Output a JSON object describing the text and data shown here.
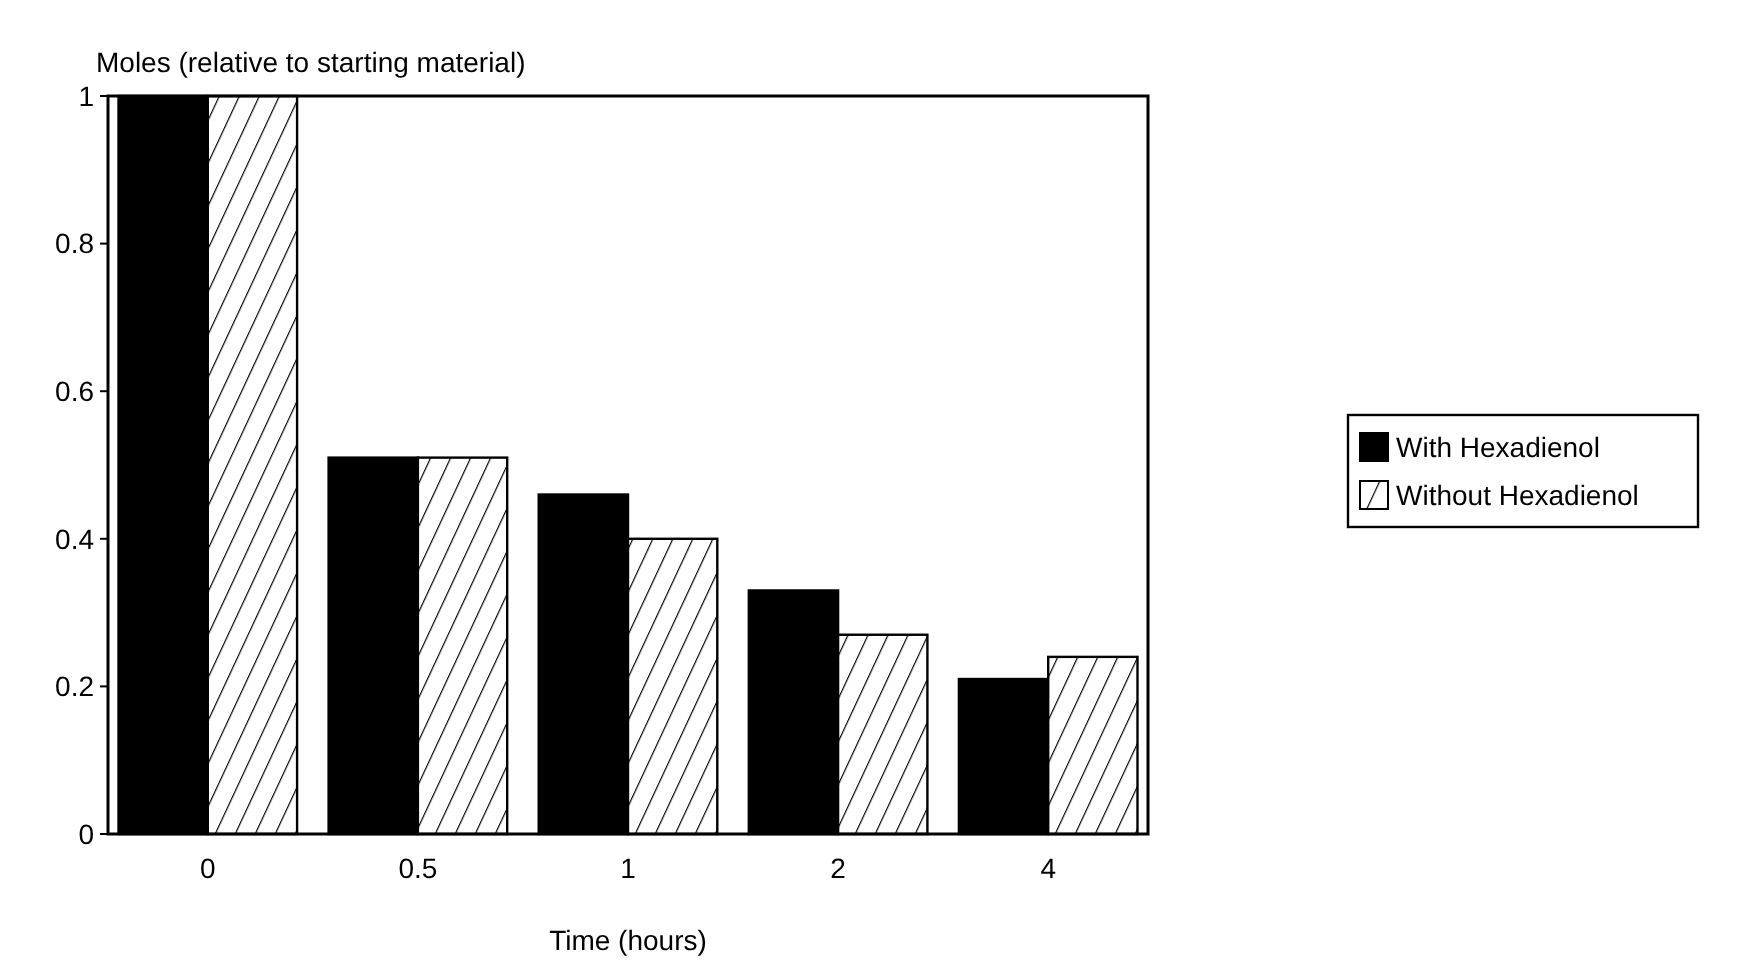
{
  "chart_data": {
    "type": "bar",
    "ylabel": "Moles (relative to starting material)",
    "xlabel": "Time (hours)",
    "categories": [
      "0",
      "0.5",
      "1",
      "2",
      "4"
    ],
    "series": [
      {
        "name": "With Hexadienol",
        "color": "#000000",
        "values": [
          1,
          0.51,
          0.46,
          0.33,
          0.21
        ]
      },
      {
        "name": "Without Hexadienol",
        "color": "#000000",
        "values": [
          1,
          0.51,
          0.4,
          0.27,
          0.24
        ]
      }
    ],
    "ylim": [
      0,
      1
    ],
    "yticks": [
      0,
      0.2,
      0.4,
      0.6,
      0.8,
      1
    ],
    "legend": "right",
    "grid": false
  }
}
